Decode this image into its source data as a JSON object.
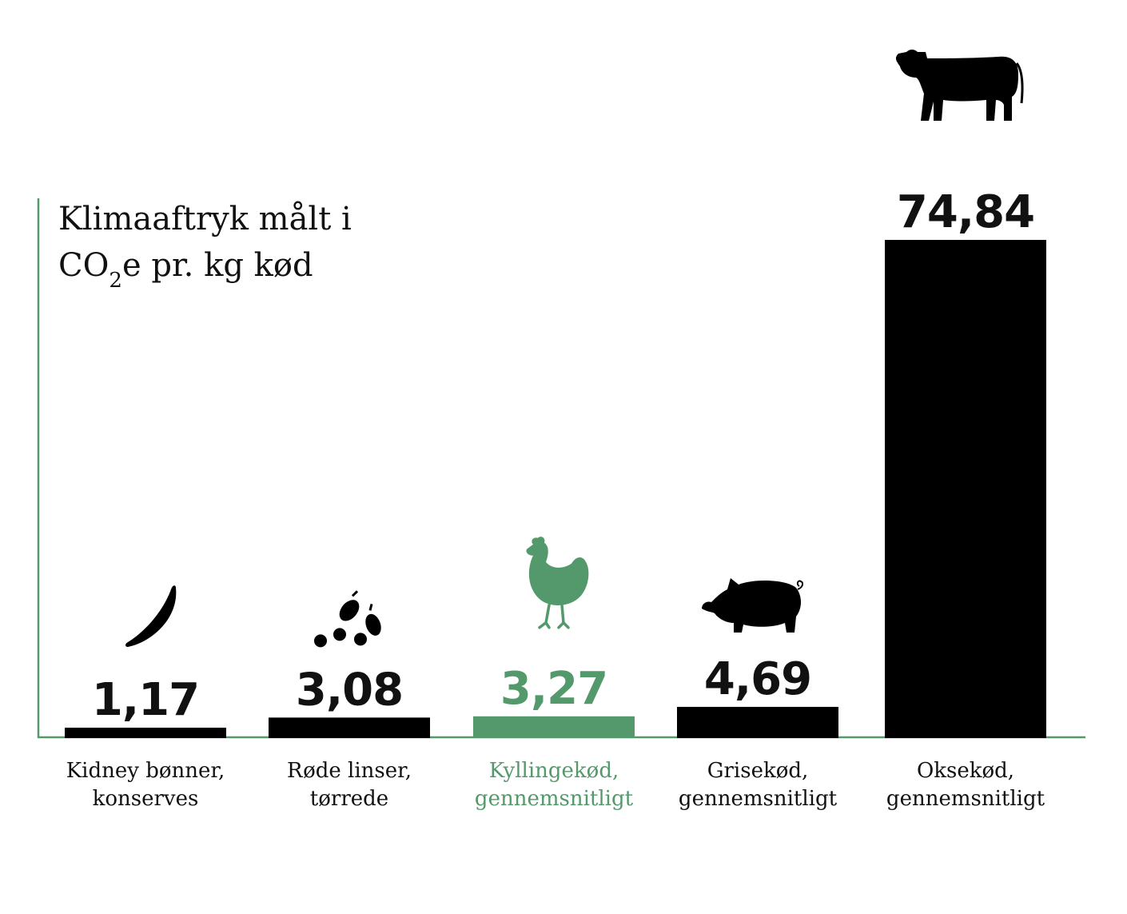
{
  "chart_data": {
    "type": "bar",
    "title_line1": "Klimaaftryk målt i",
    "title_line2_pre": "CO",
    "title_line2_sub": "2",
    "title_line2_post": "e pr. kg kød",
    "categories": [
      [
        "Kidney bønner,",
        "konserves"
      ],
      [
        "Røde linser,",
        "tørrede"
      ],
      [
        "Kyllingekød,",
        "gennemsnitligt"
      ],
      [
        "Grisekød,",
        "gennemsnitligt"
      ],
      [
        "Oksekød,",
        "gennemsnitligt"
      ]
    ],
    "values": [
      1.17,
      3.08,
      3.27,
      4.69,
      74.84
    ],
    "value_labels": [
      "1,17",
      "3,08",
      "3,27",
      "4,69",
      "74,84"
    ],
    "icons": [
      "kidney-bean-icon",
      "lentils-icon",
      "chicken-icon",
      "pig-icon",
      "cow-icon"
    ],
    "highlight_index": 2,
    "ylim": [
      0,
      75
    ],
    "grid": false,
    "colors": {
      "bar": "#000000",
      "highlight": "#54996b",
      "axis": "#54996b",
      "text": "#111111"
    }
  }
}
